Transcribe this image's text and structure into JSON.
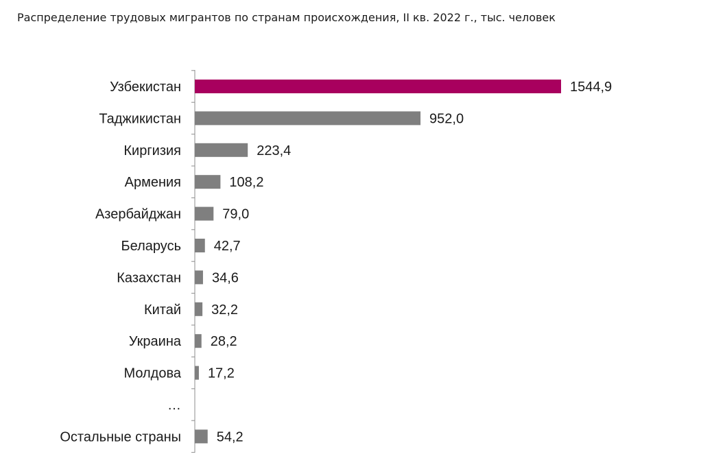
{
  "chart_data": {
    "type": "bar",
    "orientation": "horizontal",
    "title": "Распределение трудовых мигрантов по странам происхождения, II кв. 2022 г., тыс. человек",
    "categories": [
      "Узбекистан",
      "Таджикистан",
      "Киргизия",
      "Армения",
      "Азербайджан",
      "Беларусь",
      "Казахстан",
      "Китай",
      "Украина",
      "Молдова",
      "…",
      "Остальные страны"
    ],
    "values": [
      1544.9,
      952.0,
      223.4,
      108.2,
      79.0,
      42.7,
      34.6,
      32.2,
      28.2,
      17.2,
      null,
      54.2
    ],
    "value_labels": [
      "1544,9",
      "952,0",
      "223,4",
      "108,2",
      "79,0",
      "42,7",
      "34,6",
      "32,2",
      "28,2",
      "17,2",
      "",
      "54,2"
    ],
    "highlight_category": "Узбекистан",
    "xlim": [
      0,
      1544.9
    ],
    "grid": false,
    "legend": "none",
    "colors": {
      "highlight": "#A8005E",
      "default": "#7F7F7F",
      "axis": "#8C8C8C",
      "text": "#1A1A1A"
    }
  }
}
